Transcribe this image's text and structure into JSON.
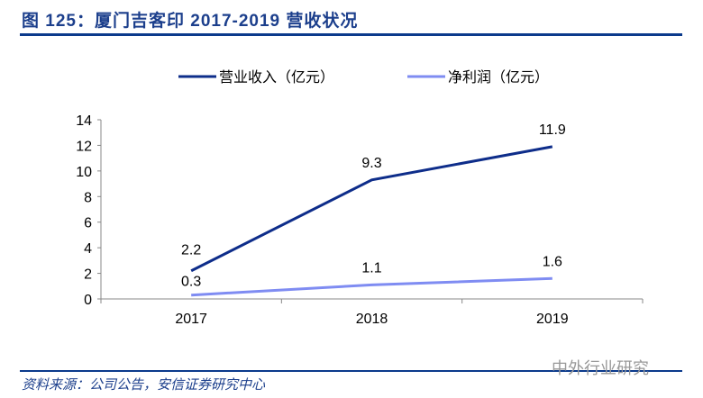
{
  "title": "图 125：厦门吉客印 2017-2019 营收状况",
  "source": "资料来源：公司公告，安信证券研究中心",
  "watermark": "中外行业研究",
  "chart_data": {
    "type": "line",
    "categories": [
      "2017",
      "2018",
      "2019"
    ],
    "series": [
      {
        "name": "营业收入（亿元）",
        "values": [
          2.2,
          9.3,
          11.9
        ],
        "color": "#0e2d8a"
      },
      {
        "name": "净利润（亿元）",
        "values": [
          0.3,
          1.1,
          1.6
        ],
        "color": "#7f8cf2"
      }
    ],
    "ylim": [
      0,
      14
    ],
    "yticks": [
      0,
      2,
      4,
      6,
      8,
      10,
      12,
      14
    ],
    "legend": "top",
    "grid": false
  }
}
